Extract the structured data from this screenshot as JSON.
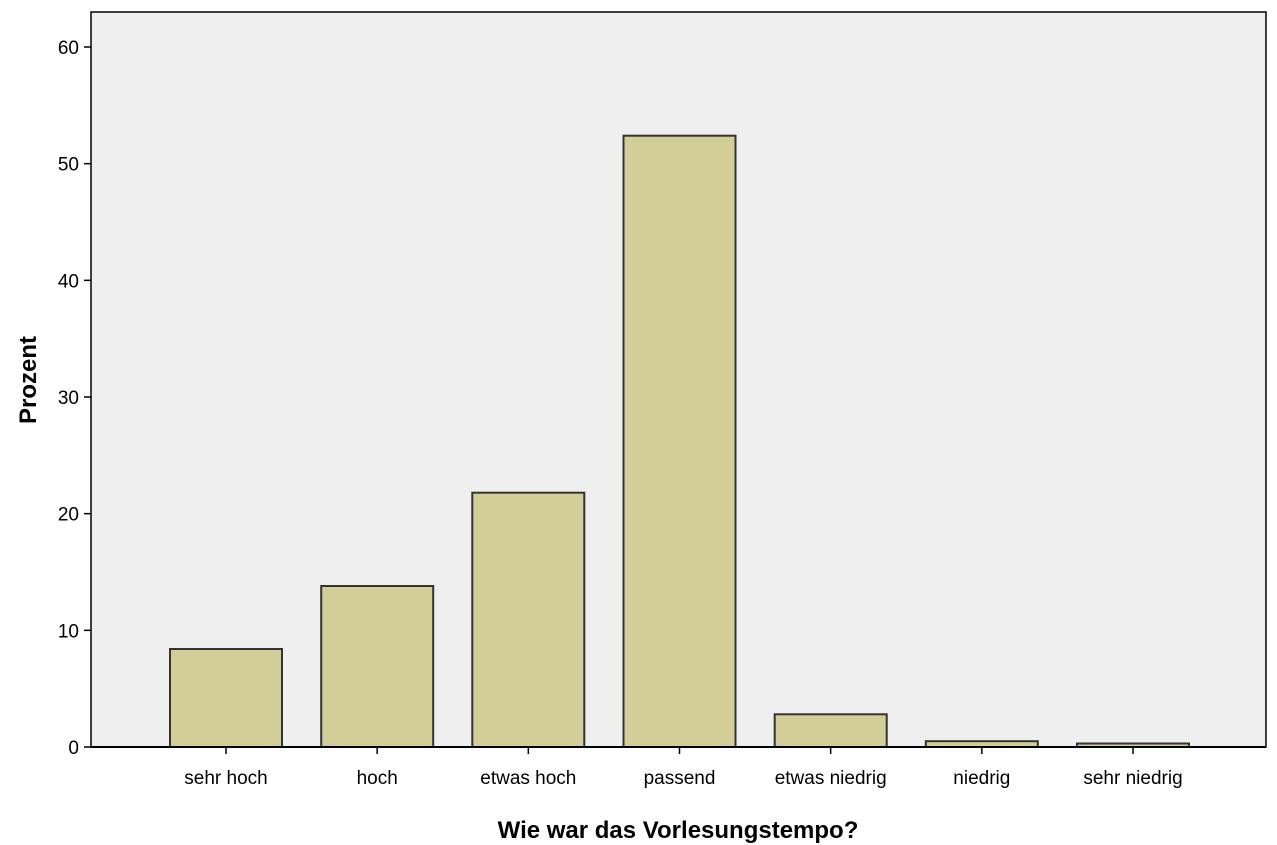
{
  "colors": {
    "plot_background": "#efefef",
    "bar_fill": "#d3ce97",
    "bar_stroke": "#333333",
    "axis": "#000000"
  },
  "chart_data": {
    "type": "bar",
    "title": "",
    "xlabel": "Wie war das Vorlesungstempo?",
    "ylabel": "Prozent",
    "categories": [
      "sehr hoch",
      "hoch",
      "etwas hoch",
      "passend",
      "etwas niedrig",
      "niedrig",
      "sehr niedrig"
    ],
    "values": [
      8.4,
      13.8,
      21.8,
      52.4,
      2.8,
      0.5,
      0.3
    ],
    "ylim": [
      0,
      63
    ],
    "yticks": [
      0,
      10,
      20,
      30,
      40,
      50,
      60
    ],
    "grid": false,
    "legend": "none"
  }
}
